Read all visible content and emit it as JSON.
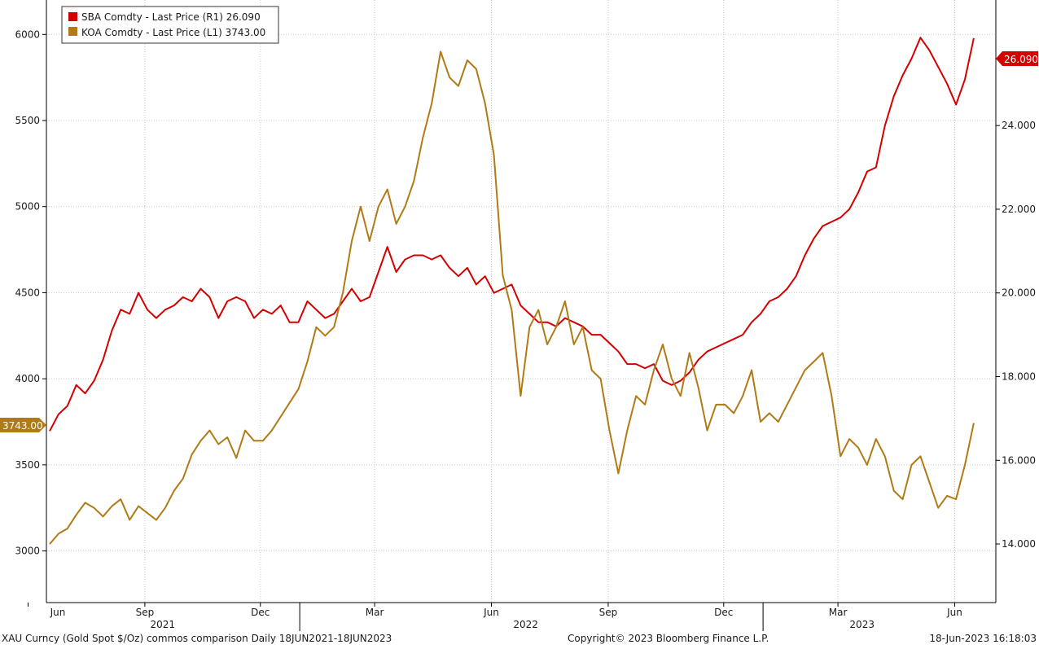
{
  "footer": {
    "left": "XAU Curncy (Gold Spot  $/Oz) commos comparison  Daily 18JUN2021-18JUN2023",
    "center": "Copyright© 2023 Bloomberg Finance L.P.",
    "right": "18-Jun-2023 16:18:03"
  },
  "legend": {
    "items": [
      {
        "label": "SBA Comdty - Last Price (R1) 26.090",
        "color": "#d40000"
      },
      {
        "label": "KOA Comdty - Last Price (L1) 3743.00",
        "color": "#b07a16"
      }
    ]
  },
  "price_tags": {
    "right": {
      "text": "26.090",
      "color": "#d40000"
    },
    "left": {
      "text": "3743.00",
      "color": "#b07a16"
    }
  },
  "chart_data": {
    "type": "line",
    "x_range": [
      "2021-06-18",
      "2023-06-18"
    ],
    "x_ticks": [
      {
        "date": "2021-06-01",
        "label": "Jun"
      },
      {
        "date": "2021-09-01",
        "label": "Sep"
      },
      {
        "date": "2021-12-01",
        "label": "Dec"
      },
      {
        "date": "2022-03-01",
        "label": "Mar"
      },
      {
        "date": "2022-06-01",
        "label": "Jun"
      },
      {
        "date": "2022-09-01",
        "label": "Sep"
      },
      {
        "date": "2022-12-01",
        "label": "Dec"
      },
      {
        "date": "2023-03-01",
        "label": "Mar"
      },
      {
        "date": "2023-06-01",
        "label": "Jun"
      }
    ],
    "year_labels": [
      {
        "date": "2021-09-15",
        "label": "2021"
      },
      {
        "date": "2022-06-28",
        "label": "2022"
      },
      {
        "date": "2023-03-20",
        "label": "2023"
      }
    ],
    "year_separators": [
      "2022-01-01",
      "2023-01-01"
    ],
    "left_axis": {
      "ylim": [
        2700,
        6200
      ],
      "ticks": [
        3000,
        3500,
        4000,
        4500,
        5000,
        5500,
        6000
      ],
      "tick_labels": [
        "3000",
        "3500",
        "4000",
        "4500",
        "5000",
        "5500",
        "6000"
      ]
    },
    "right_axis": {
      "ylim": [
        12.6,
        27.0
      ],
      "ticks": [
        14,
        16,
        18,
        20,
        22,
        24
      ],
      "tick_labels": [
        "14.000",
        "16.000",
        "18.000",
        "20.000",
        "22.000",
        "24.000"
      ]
    },
    "grid": true,
    "series": [
      {
        "name": "SBA Comdty - Last Price (R1)",
        "axis": "right",
        "color": "#d40000",
        "points": [
          [
            "2021-06-18",
            16.7
          ],
          [
            "2021-06-25",
            17.1
          ],
          [
            "2021-07-02",
            17.3
          ],
          [
            "2021-07-09",
            17.8
          ],
          [
            "2021-07-16",
            17.6
          ],
          [
            "2021-07-23",
            17.9
          ],
          [
            "2021-07-30",
            18.4
          ],
          [
            "2021-08-06",
            19.1
          ],
          [
            "2021-08-13",
            19.6
          ],
          [
            "2021-08-20",
            19.5
          ],
          [
            "2021-08-27",
            20.0
          ],
          [
            "2021-09-03",
            19.6
          ],
          [
            "2021-09-10",
            19.4
          ],
          [
            "2021-09-17",
            19.6
          ],
          [
            "2021-09-24",
            19.7
          ],
          [
            "2021-10-01",
            19.9
          ],
          [
            "2021-10-08",
            19.8
          ],
          [
            "2021-10-15",
            20.1
          ],
          [
            "2021-10-22",
            19.9
          ],
          [
            "2021-10-29",
            19.4
          ],
          [
            "2021-11-05",
            19.8
          ],
          [
            "2021-11-12",
            19.9
          ],
          [
            "2021-11-19",
            19.8
          ],
          [
            "2021-11-26",
            19.4
          ],
          [
            "2021-12-03",
            19.6
          ],
          [
            "2021-12-10",
            19.5
          ],
          [
            "2021-12-17",
            19.7
          ],
          [
            "2021-12-24",
            19.3
          ],
          [
            "2021-12-31",
            19.3
          ],
          [
            "2022-01-07",
            19.8
          ],
          [
            "2022-01-14",
            19.6
          ],
          [
            "2022-01-21",
            19.4
          ],
          [
            "2022-01-28",
            19.5
          ],
          [
            "2022-02-04",
            19.8
          ],
          [
            "2022-02-11",
            20.1
          ],
          [
            "2022-02-18",
            19.8
          ],
          [
            "2022-02-25",
            19.9
          ],
          [
            "2022-03-04",
            20.5
          ],
          [
            "2022-03-11",
            21.1
          ],
          [
            "2022-03-18",
            20.5
          ],
          [
            "2022-03-25",
            20.8
          ],
          [
            "2022-04-01",
            20.9
          ],
          [
            "2022-04-08",
            20.9
          ],
          [
            "2022-04-15",
            20.8
          ],
          [
            "2022-04-22",
            20.9
          ],
          [
            "2022-04-29",
            20.6
          ],
          [
            "2022-05-06",
            20.4
          ],
          [
            "2022-05-13",
            20.6
          ],
          [
            "2022-05-20",
            20.2
          ],
          [
            "2022-05-27",
            20.4
          ],
          [
            "2022-06-03",
            20.0
          ],
          [
            "2022-06-10",
            20.1
          ],
          [
            "2022-06-17",
            20.2
          ],
          [
            "2022-06-24",
            19.7
          ],
          [
            "2022-07-01",
            19.5
          ],
          [
            "2022-07-08",
            19.3
          ],
          [
            "2022-07-15",
            19.3
          ],
          [
            "2022-07-22",
            19.2
          ],
          [
            "2022-07-29",
            19.4
          ],
          [
            "2022-08-05",
            19.3
          ],
          [
            "2022-08-12",
            19.2
          ],
          [
            "2022-08-19",
            19.0
          ],
          [
            "2022-08-26",
            19.0
          ],
          [
            "2022-09-02",
            18.8
          ],
          [
            "2022-09-09",
            18.6
          ],
          [
            "2022-09-16",
            18.3
          ],
          [
            "2022-09-23",
            18.3
          ],
          [
            "2022-09-30",
            18.2
          ],
          [
            "2022-10-07",
            18.3
          ],
          [
            "2022-10-14",
            17.9
          ],
          [
            "2022-10-21",
            17.8
          ],
          [
            "2022-10-28",
            17.9
          ],
          [
            "2022-11-04",
            18.1
          ],
          [
            "2022-11-11",
            18.4
          ],
          [
            "2022-11-18",
            18.6
          ],
          [
            "2022-11-25",
            18.7
          ],
          [
            "2022-12-02",
            18.8
          ],
          [
            "2022-12-09",
            18.9
          ],
          [
            "2022-12-16",
            19.0
          ],
          [
            "2022-12-23",
            19.3
          ],
          [
            "2022-12-30",
            19.5
          ],
          [
            "2023-01-06",
            19.8
          ],
          [
            "2023-01-13",
            19.9
          ],
          [
            "2023-01-20",
            20.1
          ],
          [
            "2023-01-27",
            20.4
          ],
          [
            "2023-02-03",
            20.9
          ],
          [
            "2023-02-10",
            21.3
          ],
          [
            "2023-02-17",
            21.6
          ],
          [
            "2023-02-24",
            21.7
          ],
          [
            "2023-03-03",
            21.8
          ],
          [
            "2023-03-10",
            22.0
          ],
          [
            "2023-03-17",
            22.4
          ],
          [
            "2023-03-24",
            22.9
          ],
          [
            "2023-03-31",
            23.0
          ],
          [
            "2023-04-07",
            24.0
          ],
          [
            "2023-04-14",
            24.7
          ],
          [
            "2023-04-21",
            25.2
          ],
          [
            "2023-04-28",
            25.6
          ],
          [
            "2023-05-05",
            26.1
          ],
          [
            "2023-05-12",
            25.8
          ],
          [
            "2023-05-19",
            25.4
          ],
          [
            "2023-05-26",
            25.0
          ],
          [
            "2023-06-02",
            24.5
          ],
          [
            "2023-06-09",
            25.1
          ],
          [
            "2023-06-16",
            26.09
          ]
        ]
      },
      {
        "name": "KOA Comdty - Last Price (L1)",
        "axis": "left",
        "color": "#b07a16",
        "points": [
          [
            "2021-06-18",
            3040
          ],
          [
            "2021-06-25",
            3100
          ],
          [
            "2021-07-02",
            3130
          ],
          [
            "2021-07-09",
            3210
          ],
          [
            "2021-07-16",
            3280
          ],
          [
            "2021-07-23",
            3250
          ],
          [
            "2021-07-30",
            3200
          ],
          [
            "2021-08-06",
            3260
          ],
          [
            "2021-08-13",
            3300
          ],
          [
            "2021-08-20",
            3180
          ],
          [
            "2021-08-27",
            3260
          ],
          [
            "2021-09-03",
            3220
          ],
          [
            "2021-09-10",
            3180
          ],
          [
            "2021-09-17",
            3250
          ],
          [
            "2021-09-24",
            3350
          ],
          [
            "2021-10-01",
            3420
          ],
          [
            "2021-10-08",
            3560
          ],
          [
            "2021-10-15",
            3640
          ],
          [
            "2021-10-22",
            3700
          ],
          [
            "2021-10-29",
            3620
          ],
          [
            "2021-11-05",
            3660
          ],
          [
            "2021-11-12",
            3540
          ],
          [
            "2021-11-19",
            3700
          ],
          [
            "2021-11-26",
            3640
          ],
          [
            "2021-12-03",
            3640
          ],
          [
            "2021-12-10",
            3700
          ],
          [
            "2021-12-17",
            3780
          ],
          [
            "2021-12-24",
            3860
          ],
          [
            "2021-12-31",
            3940
          ],
          [
            "2022-01-07",
            4100
          ],
          [
            "2022-01-14",
            4300
          ],
          [
            "2022-01-21",
            4250
          ],
          [
            "2022-01-28",
            4300
          ],
          [
            "2022-02-04",
            4500
          ],
          [
            "2022-02-11",
            4800
          ],
          [
            "2022-02-18",
            5000
          ],
          [
            "2022-02-25",
            4800
          ],
          [
            "2022-03-04",
            5000
          ],
          [
            "2022-03-11",
            5100
          ],
          [
            "2022-03-18",
            4900
          ],
          [
            "2022-03-25",
            5000
          ],
          [
            "2022-04-01",
            5150
          ],
          [
            "2022-04-08",
            5400
          ],
          [
            "2022-04-15",
            5600
          ],
          [
            "2022-04-22",
            5900
          ],
          [
            "2022-04-29",
            5750
          ],
          [
            "2022-05-06",
            5700
          ],
          [
            "2022-05-13",
            5850
          ],
          [
            "2022-05-20",
            5800
          ],
          [
            "2022-05-27",
            5600
          ],
          [
            "2022-06-03",
            5300
          ],
          [
            "2022-06-10",
            4600
          ],
          [
            "2022-06-17",
            4400
          ],
          [
            "2022-06-24",
            3900
          ],
          [
            "2022-07-01",
            4300
          ],
          [
            "2022-07-08",
            4400
          ],
          [
            "2022-07-15",
            4200
          ],
          [
            "2022-07-22",
            4300
          ],
          [
            "2022-07-29",
            4450
          ],
          [
            "2022-08-05",
            4200
          ],
          [
            "2022-08-12",
            4300
          ],
          [
            "2022-08-19",
            4050
          ],
          [
            "2022-08-26",
            4000
          ],
          [
            "2022-09-02",
            3700
          ],
          [
            "2022-09-09",
            3450
          ],
          [
            "2022-09-16",
            3700
          ],
          [
            "2022-09-23",
            3900
          ],
          [
            "2022-09-30",
            3850
          ],
          [
            "2022-10-07",
            4050
          ],
          [
            "2022-10-14",
            4200
          ],
          [
            "2022-10-21",
            4000
          ],
          [
            "2022-10-28",
            3900
          ],
          [
            "2022-11-04",
            4150
          ],
          [
            "2022-11-11",
            3950
          ],
          [
            "2022-11-18",
            3700
          ],
          [
            "2022-11-25",
            3850
          ],
          [
            "2022-12-02",
            3850
          ],
          [
            "2022-12-09",
            3800
          ],
          [
            "2022-12-16",
            3900
          ],
          [
            "2022-12-23",
            4050
          ],
          [
            "2022-12-30",
            3750
          ],
          [
            "2023-01-06",
            3800
          ],
          [
            "2023-01-13",
            3750
          ],
          [
            "2023-01-20",
            3850
          ],
          [
            "2023-01-27",
            3950
          ],
          [
            "2023-02-03",
            4050
          ],
          [
            "2023-02-10",
            4100
          ],
          [
            "2023-02-17",
            4150
          ],
          [
            "2023-02-24",
            3900
          ],
          [
            "2023-03-03",
            3550
          ],
          [
            "2023-03-10",
            3650
          ],
          [
            "2023-03-17",
            3600
          ],
          [
            "2023-03-24",
            3500
          ],
          [
            "2023-03-31",
            3650
          ],
          [
            "2023-04-07",
            3550
          ],
          [
            "2023-04-14",
            3350
          ],
          [
            "2023-04-21",
            3300
          ],
          [
            "2023-04-28",
            3500
          ],
          [
            "2023-05-05",
            3550
          ],
          [
            "2023-05-12",
            3400
          ],
          [
            "2023-05-19",
            3250
          ],
          [
            "2023-05-26",
            3320
          ],
          [
            "2023-06-02",
            3300
          ],
          [
            "2023-06-09",
            3500
          ],
          [
            "2023-06-16",
            3743
          ]
        ]
      }
    ]
  }
}
